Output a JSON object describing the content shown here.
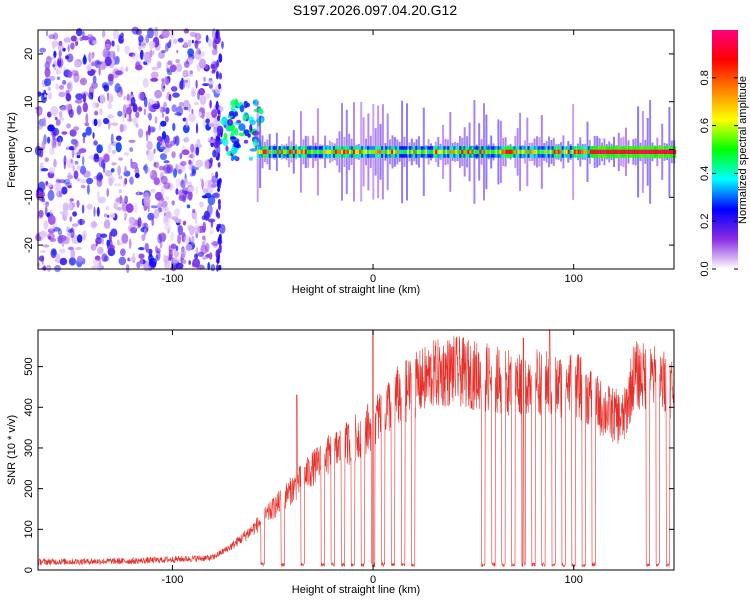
{
  "figure_title": "S197.2026.097.04.20.G12",
  "chart_data": [
    {
      "type": "heatmap",
      "name": "spectrogram",
      "xlabel": "Height of straight line (km)",
      "ylabel": "Frequency (Hz)",
      "xlim": [
        -167,
        150
      ],
      "ylim": [
        -25,
        25
      ],
      "xticks": [
        -100,
        0,
        100
      ],
      "xtick_labels": [
        "-100",
        "0",
        "100"
      ],
      "yticks": [
        -20,
        -10,
        0,
        10,
        20
      ],
      "ytick_labels": [
        "-20",
        "-10",
        "0",
        "10",
        "20"
      ],
      "colorbar": {
        "label": "Normalized spectral amplitude",
        "range": [
          0,
          1
        ],
        "ticks": [
          0.0,
          0.2,
          0.4,
          0.6,
          0.8
        ],
        "tick_labels": [
          "0.0",
          "0.2",
          "0.4",
          "0.6",
          "0.8"
        ],
        "colormap": [
          "#ffffff",
          "#8a2be2",
          "#0000ff",
          "#00ffff",
          "#00ff00",
          "#ffff00",
          "#ff8000",
          "#ff0000",
          "#ff0080"
        ]
      },
      "features": {
        "noise_region_x": [
          -167,
          -75
        ],
        "transition_region_x": [
          -75,
          -55
        ],
        "carrier_line": {
          "x_start": -58,
          "x_end": 150,
          "frequency_hz": -0.5,
          "peak_amplitude": 0.95
        },
        "strong_carrier_x": [
          108,
          150
        ]
      }
    },
    {
      "type": "line",
      "name": "snr",
      "xlabel": "Height of straight line (km)",
      "ylabel": "SNR (10 * v/v)",
      "xlim": [
        -167,
        150
      ],
      "ylim": [
        0,
        590
      ],
      "xticks": [
        -100,
        0,
        100
      ],
      "xtick_labels": [
        "-100",
        "0",
        "100"
      ],
      "yticks": [
        0,
        100,
        200,
        300,
        400,
        500
      ],
      "ytick_labels": [
        "0",
        "100",
        "200",
        "300",
        "400",
        "500"
      ],
      "color": "#e8302a",
      "trend": {
        "x": [
          -167,
          -120,
          -80,
          -70,
          -60,
          -50,
          -40,
          -30,
          -20,
          -10,
          0,
          10,
          20,
          30,
          40,
          50,
          60,
          70,
          80,
          90,
          100,
          110,
          113,
          120,
          125,
          130,
          140,
          150
        ],
        "y": [
          20,
          22,
          30,
          60,
          100,
          150,
          200,
          250,
          290,
          320,
          360,
          420,
          450,
          480,
          490,
          480,
          470,
          460,
          470,
          450,
          460,
          420,
          400,
          380,
          370,
          480,
          470,
          450
        ]
      },
      "dropouts_x": [
        -55,
        -45,
        -35,
        -25,
        -20,
        -15,
        -10,
        -5,
        0,
        5,
        10,
        15,
        20,
        55,
        60,
        65,
        70,
        75,
        80,
        85,
        90,
        95,
        100,
        105,
        110,
        137,
        142,
        147
      ],
      "spikes": [
        {
          "x": 0,
          "y": 590
        },
        {
          "x": -38,
          "y": 430
        },
        {
          "x": 88,
          "y": 590
        },
        {
          "x": 75,
          "y": 570
        }
      ]
    }
  ]
}
